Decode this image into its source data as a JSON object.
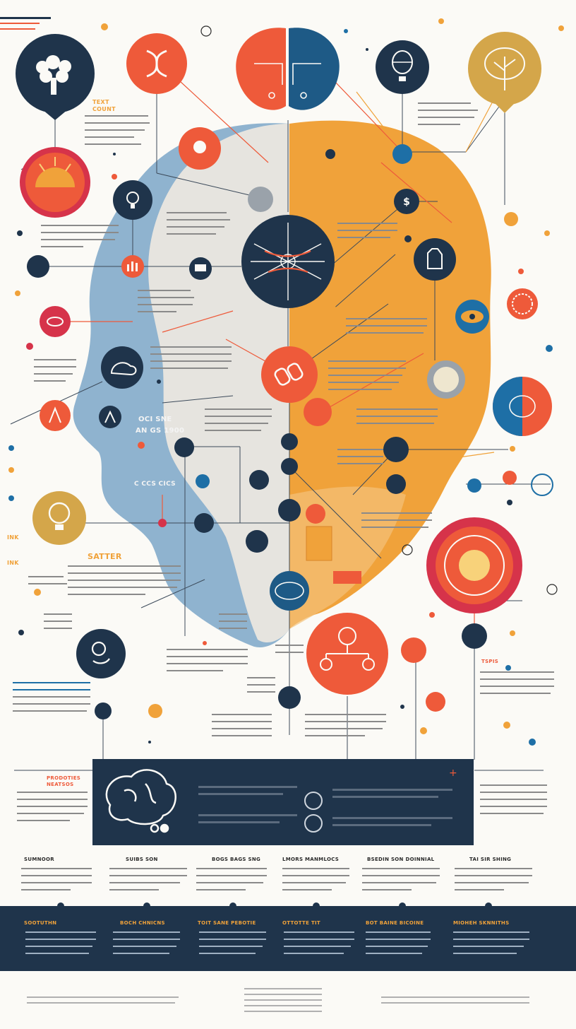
{
  "colors": {
    "navy": "#1f344b",
    "red_orange": "#ee5a3a",
    "orange": "#f0a23a",
    "mustard": "#d4a64a",
    "steel_blue": "#8fb3cf",
    "light_gray": "#e6e4df",
    "crimson": "#d6334a",
    "teal": "#1e6fa6",
    "background": "#fbfaf6"
  },
  "icons": {
    "top_left_circle": "cauliflower-brain-icon",
    "top_center_circle": "dna-icon",
    "top_brain": "split-brain-icon",
    "top_right_circle": "hot-air-balloon-icon",
    "far_top_right_circle": "tree-icon",
    "sun_circle": "sun-icon",
    "lightbulb_small": "lightbulb-icon",
    "central_circle": "neuron-network-icon",
    "hand_circle": "hand-icon",
    "eye_circle": "eye-icon",
    "hemisphere_circle": "brain-hemisphere-icon",
    "target_circle": "target-icon",
    "lightbulb_large": "lightbulb-icon",
    "network_circle": "node-network-icon",
    "panel_brain": "brain-outline-icon"
  },
  "labels": {
    "left_top_title": "TEXT",
    "left_top_subtitle": "COUNT",
    "head_center_figure": "OCI SNE",
    "head_center_figure_2": "AN GS 1900",
    "head_lower_figure": "C CCS CICS",
    "left_mid_title": "SATTER",
    "left_side_a": "INK",
    "left_side_b": "INK"
  },
  "columns_white": [
    {
      "title": "SUMNOOR"
    },
    {
      "title": "SUIBS SON"
    },
    {
      "title": "BOGS BAGS SNG"
    },
    {
      "title": "LMORS MANMLOCS"
    },
    {
      "title": "BSEDIN SON DOINNIAL"
    },
    {
      "title": "TAI SIR SHING"
    }
  ],
  "columns_band": [
    {
      "title": "SOOTUTHN"
    },
    {
      "title": "BOCH CHNICNS"
    },
    {
      "title": "TOIT SANE PEBOTIE"
    },
    {
      "title": "OTTOTTE TIT"
    },
    {
      "title": "BOT BAINE BICOINE"
    },
    {
      "title": "MIOHEH SKNNITHS"
    }
  ],
  "panel_side_title": "PRODOTIES NEATSOS",
  "right_side_title": "TSPIS"
}
